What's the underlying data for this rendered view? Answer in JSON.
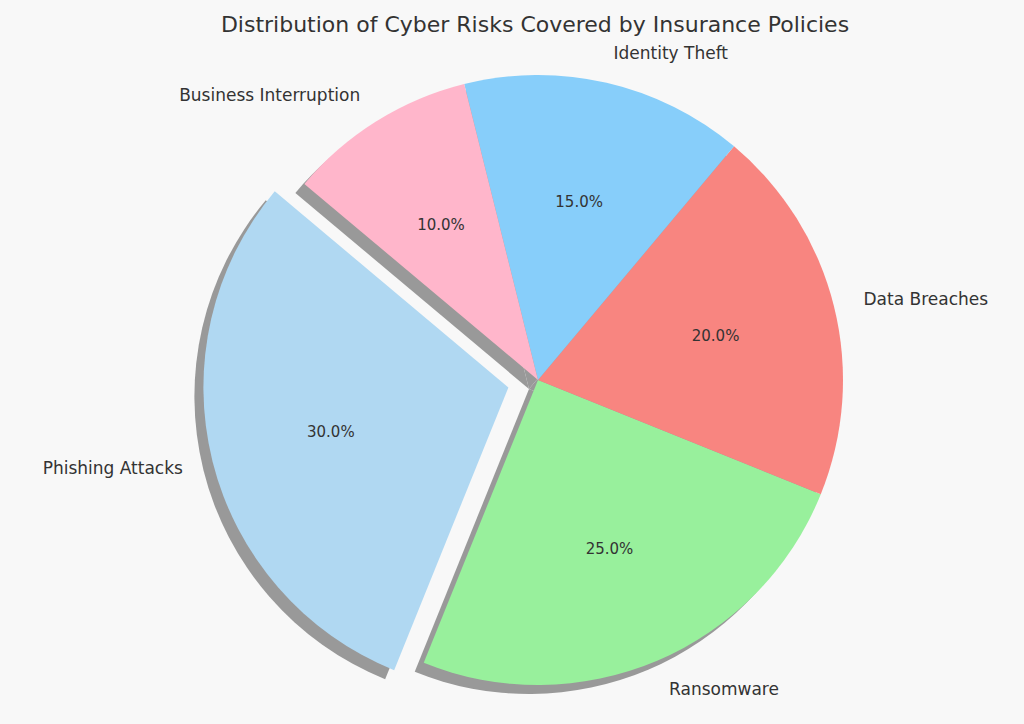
{
  "chart_data": {
    "type": "pie",
    "title": "Distribution of Cyber Risks Covered by Insurance Policies",
    "categories": [
      "Phishing Attacks",
      "Ransomware",
      "Data Breaches",
      "Identity Theft",
      "Business Interruption"
    ],
    "values": [
      30,
      25,
      20,
      15,
      10
    ],
    "value_labels": [
      "30.0%",
      "25.0%",
      "20.0%",
      "15.0%",
      "10.0%"
    ],
    "colors": [
      "#b0d8f2",
      "#98f09c",
      "#f88580",
      "#87cefa",
      "#ffb6cb"
    ],
    "data_labels": true
  }
}
